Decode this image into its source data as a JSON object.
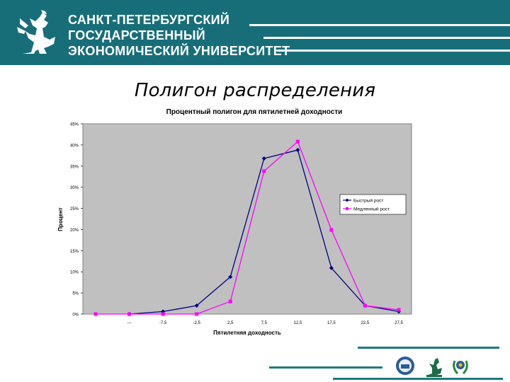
{
  "header": {
    "university_lines": [
      "САНКТ-ПЕТЕРБУРГСКИЙ",
      "ГОСУДАРСТВЕННЫЙ",
      "ЭКОНОМИЧЕСКИЙ УНИВЕРСИТЕТ"
    ],
    "background_color": "#176e79",
    "logo_icon": "griffin-icon"
  },
  "slide": {
    "title": "Полигон распределения"
  },
  "chart_data": {
    "type": "line",
    "title": "Процентный полигон для пятилетней доходности",
    "xlabel": "Пятилетняя доходность",
    "ylabel": "Процент",
    "categories": [
      "",
      "---",
      "-7,5",
      "-2,5",
      "2,5",
      "7,5",
      "12,5",
      "17,5",
      "22,5",
      "27,5"
    ],
    "yticks": [
      "0%",
      "5%",
      "10%",
      "15%",
      "20%",
      "25%",
      "30%",
      "35%",
      "40%",
      "45%"
    ],
    "ylim": [
      0,
      45
    ],
    "grid": false,
    "plot_background": "#c0c0c0",
    "legend_position": "right",
    "series": [
      {
        "name": "Быстрый рост",
        "color": "#000080",
        "marker": "diamond",
        "values": [
          null,
          0,
          0.6,
          2,
          8.8,
          36.8,
          38.8,
          10.9,
          2,
          0.6
        ]
      },
      {
        "name": "Медленный рост",
        "color": "#ff00ff",
        "marker": "square",
        "values": [
          0,
          0,
          0,
          0,
          3,
          33.8,
          40.8,
          19.9,
          2,
          1
        ]
      }
    ]
  },
  "footer": {
    "logos": [
      "emblem-blue-icon",
      "griffin-small-icon",
      "wreath-emblem-icon"
    ]
  }
}
